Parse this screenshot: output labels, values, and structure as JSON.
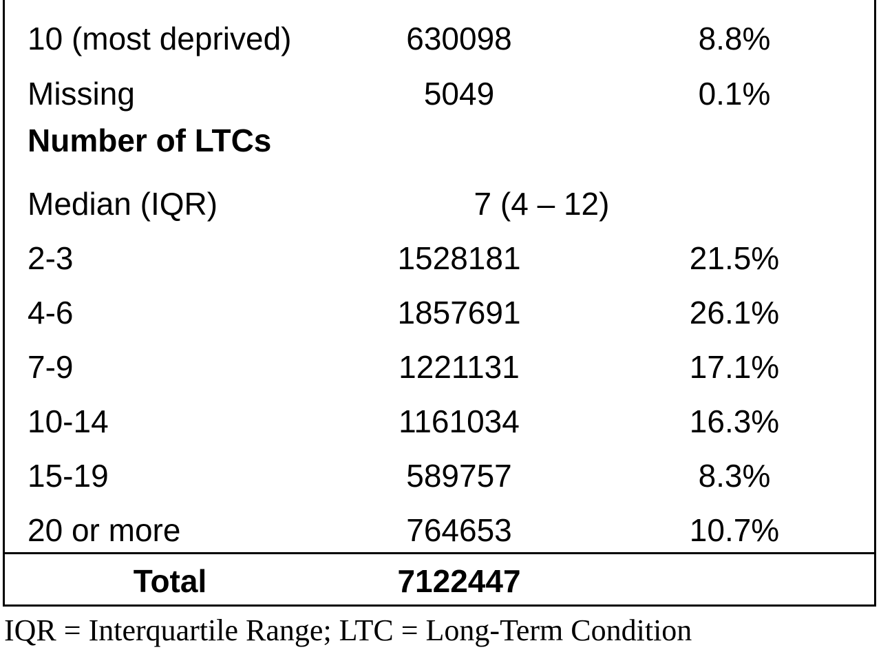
{
  "rows": [
    {
      "label": "10 (most deprived)",
      "count": "630098",
      "pct": "8.8%"
    },
    {
      "label": "Missing",
      "count": "5049",
      "pct": "0.1%"
    }
  ],
  "section": {
    "heading": "Number of LTCs",
    "median": {
      "label": "Median (IQR)",
      "value": "7 (4 – 12)"
    },
    "rows": [
      {
        "label": "2-3",
        "count": "1528181",
        "pct": "21.5%"
      },
      {
        "label": "4-6",
        "count": "1857691",
        "pct": "26.1%"
      },
      {
        "label": "7-9",
        "count": "1221131",
        "pct": "17.1%"
      },
      {
        "label": "10-14",
        "count": "1161034",
        "pct": "16.3%"
      },
      {
        "label": "15-19",
        "count": "589757",
        "pct": "8.3%"
      },
      {
        "label": "20 or more",
        "count": "764653",
        "pct": "10.7%"
      }
    ]
  },
  "total": {
    "label": "Total",
    "count": "7122447"
  },
  "footnote": "IQR = Interquartile Range; LTC = Long-Term Condition"
}
